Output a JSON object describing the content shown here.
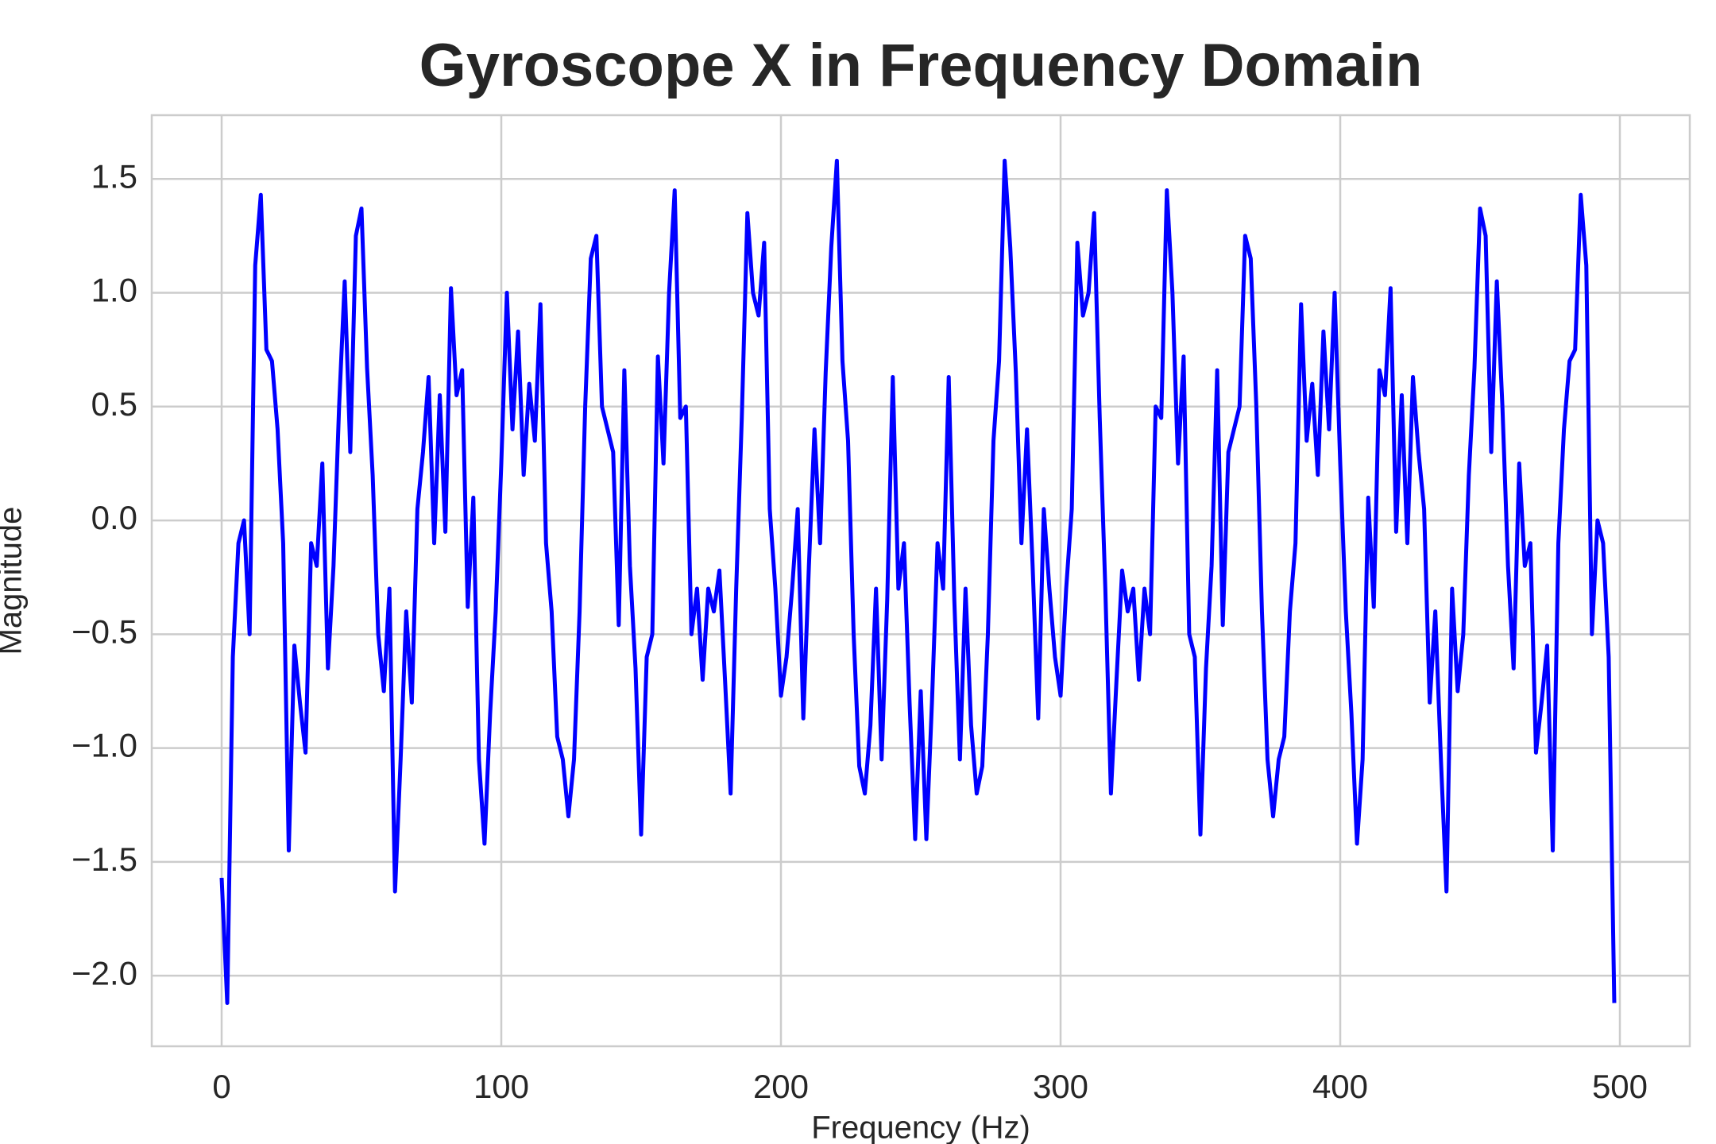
{
  "chart_data": {
    "type": "line",
    "title": "Gyroscope X in Frequency Domain",
    "x_label": "Frequency (Hz)",
    "y_label": "Magnitude",
    "x": [
      0,
      2,
      4,
      6,
      8,
      10,
      12,
      14,
      16,
      18,
      20,
      22,
      24,
      26,
      28,
      30,
      32,
      34,
      36,
      38,
      40,
      42,
      44,
      46,
      48,
      50,
      52,
      54,
      56,
      58,
      60,
      62,
      64,
      66,
      68,
      70,
      72,
      74,
      76,
      78,
      80,
      82,
      84,
      86,
      88,
      90,
      92,
      94,
      96,
      98,
      100,
      102,
      104,
      106,
      108,
      110,
      112,
      114,
      116,
      118,
      120,
      122,
      124,
      126,
      128,
      130,
      132,
      134,
      136,
      138,
      140,
      142,
      144,
      146,
      148,
      150,
      152,
      154,
      156,
      158,
      160,
      162,
      164,
      166,
      168,
      170,
      172,
      174,
      176,
      178,
      180,
      182,
      184,
      186,
      188,
      190,
      192,
      194,
      196,
      198,
      200,
      202,
      204,
      206,
      208,
      210,
      212,
      214,
      216,
      218,
      220,
      222,
      224,
      226,
      228,
      230,
      232,
      234,
      236,
      238,
      240,
      242,
      244,
      246,
      248,
      250,
      252,
      254,
      256,
      258,
      260,
      262,
      264,
      266,
      268,
      270,
      272,
      274,
      276,
      278,
      280,
      282,
      284,
      286,
      288,
      290,
      292,
      294,
      296,
      298,
      300,
      302,
      304,
      306,
      308,
      310,
      312,
      314,
      316,
      318,
      320,
      322,
      324,
      326,
      328,
      330,
      332,
      334,
      336,
      338,
      340,
      342,
      344,
      346,
      348,
      350,
      352,
      354,
      356,
      358,
      360,
      362,
      364,
      366,
      368,
      370,
      372,
      374,
      376,
      378,
      380,
      382,
      384,
      386,
      388,
      390,
      392,
      394,
      396,
      398,
      400,
      402,
      404,
      406,
      408,
      410,
      412,
      414,
      416,
      418,
      420,
      422,
      424,
      426,
      428,
      430,
      432,
      434,
      436,
      438,
      440,
      442,
      444,
      446,
      448,
      450,
      452,
      454,
      456,
      458,
      460,
      462,
      464,
      466,
      468,
      470,
      472,
      474,
      476,
      478,
      480,
      482,
      484,
      486,
      488,
      490,
      492,
      494,
      496,
      498
    ],
    "series": [
      {
        "name": "Gyroscope X",
        "color": "#0000ff",
        "values": [
          -1.57,
          -2.12,
          -0.6,
          -0.1,
          0.0,
          -0.5,
          1.12,
          1.43,
          0.75,
          0.7,
          0.4,
          -0.1,
          -1.45,
          -0.55,
          -0.8,
          -1.02,
          -0.1,
          -0.2,
          0.25,
          -0.65,
          -0.2,
          0.5,
          1.05,
          0.3,
          1.25,
          1.37,
          0.67,
          0.2,
          -0.5,
          -0.75,
          -0.3,
          -1.63,
          -1.05,
          -0.4,
          -0.8,
          0.05,
          0.3,
          0.63,
          -0.1,
          0.55,
          -0.05,
          1.02,
          0.55,
          0.66,
          -0.38,
          0.1,
          -1.05,
          -1.42,
          -0.85,
          -0.4,
          0.25,
          1.0,
          0.4,
          0.83,
          0.2,
          0.6,
          0.35,
          0.95,
          -0.1,
          -0.4,
          -0.95,
          -1.05,
          -1.3,
          -1.05,
          -0.4,
          0.5,
          1.15,
          1.25,
          0.5,
          0.4,
          0.3,
          -0.46,
          0.66,
          -0.2,
          -0.65,
          -1.38,
          -0.6,
          -0.5,
          0.72,
          0.25,
          1.0,
          1.45,
          0.45,
          0.5,
          -0.5,
          -0.3,
          -0.7,
          -0.3,
          -0.4,
          -0.22,
          -0.7,
          -1.2,
          -0.3,
          0.45,
          1.35,
          1.0,
          0.9,
          1.22,
          0.05,
          -0.3,
          -0.77,
          -0.6,
          -0.3,
          0.05,
          -0.87,
          -0.2,
          0.4,
          -0.1,
          0.65,
          1.2,
          1.58,
          0.7,
          0.35,
          -0.5,
          -1.08,
          -1.2,
          -0.9,
          -0.3,
          -1.05,
          -0.35,
          0.63,
          -0.3,
          -0.1,
          -0.8,
          -1.4,
          -0.75,
          -1.4,
          -0.8,
          -0.1,
          -0.3,
          0.63,
          -0.35,
          -1.05,
          -0.3,
          -0.9,
          -1.2,
          -1.08,
          -0.5,
          0.35,
          0.7,
          1.58,
          1.2,
          0.65,
          -0.1,
          0.4,
          -0.2,
          -0.87,
          0.05,
          -0.3,
          -0.6,
          -0.77,
          -0.3,
          0.05,
          1.22,
          0.9,
          1.0,
          1.35,
          0.45,
          -0.3,
          -1.2,
          -0.7,
          -0.22,
          -0.4,
          -0.3,
          -0.7,
          -0.3,
          -0.5,
          0.5,
          0.45,
          1.45,
          1.0,
          0.25,
          0.72,
          -0.5,
          -0.6,
          -1.38,
          -0.65,
          -0.2,
          0.66,
          -0.46,
          0.3,
          0.4,
          0.5,
          1.25,
          1.15,
          0.5,
          -0.4,
          -1.05,
          -1.3,
          -1.05,
          -0.95,
          -0.4,
          -0.1,
          0.95,
          0.35,
          0.6,
          0.2,
          0.83,
          0.4,
          1.0,
          0.25,
          -0.4,
          -0.85,
          -1.42,
          -1.05,
          0.1,
          -0.38,
          0.66,
          0.55,
          1.02,
          -0.05,
          0.55,
          -0.1,
          0.63,
          0.3,
          0.05,
          -0.8,
          -0.4,
          -1.05,
          -1.63,
          -0.3,
          -0.75,
          -0.5,
          0.2,
          0.67,
          1.37,
          1.25,
          0.3,
          1.05,
          0.5,
          -0.2,
          -0.65,
          0.25,
          -0.2,
          -0.1,
          -1.02,
          -0.8,
          -0.55,
          -1.45,
          -0.1,
          0.4,
          0.7,
          0.75,
          1.43,
          1.12,
          -0.5,
          0.0,
          -0.1,
          -0.6,
          -2.12
        ]
      }
    ],
    "xlim": [
      -25,
      525
    ],
    "xticks": [
      0,
      100,
      200,
      300,
      400,
      500
    ],
    "ylim": [
      -2.31,
      1.78
    ],
    "yticks": [
      {
        "value": -2,
        "label": "−2.0"
      },
      {
        "value": -1.5,
        "label": "−1.5"
      },
      {
        "value": -1,
        "label": "−1.0"
      },
      {
        "value": -0.5,
        "label": "−0.5"
      },
      {
        "value": 0,
        "label": "0.0"
      },
      0.5,
      {
        "value": 1,
        "label": "1.0"
      },
      1.5
    ],
    "grid": true
  }
}
